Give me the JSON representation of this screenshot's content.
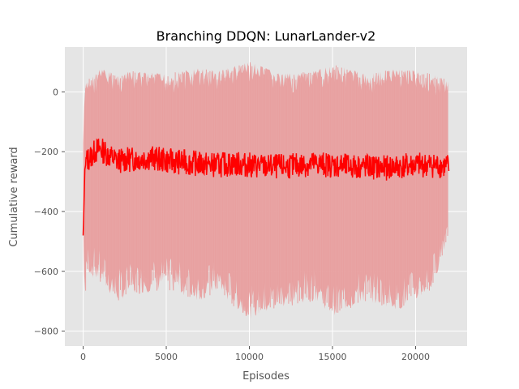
{
  "chart_data": {
    "type": "line",
    "title": "Branching DDQN: LunarLander-v2",
    "xlabel": "Episodes",
    "ylabel": "Cumulative reward",
    "xlim": [
      -1100,
      23100
    ],
    "ylim": [
      -850,
      150
    ],
    "x_ticks": [
      0,
      5000,
      10000,
      15000,
      20000
    ],
    "y_ticks": [
      -800,
      -600,
      -400,
      -200,
      0
    ],
    "x_tick_labels": [
      "0",
      "5000",
      "10000",
      "15000",
      "20000"
    ],
    "y_tick_labels": [
      "−800",
      "−600",
      "−400",
      "−200",
      "0"
    ],
    "grid": true,
    "legend": "none",
    "colors": {
      "background": "#e5e5e5",
      "grid": "#ffffff",
      "raw_series": "#e8a0a0",
      "smoothed_series": "#ff0000"
    },
    "series": [
      {
        "role": "raw episode reward (band)",
        "x": [
          0,
          100,
          250,
          500,
          1000,
          2000,
          3000,
          5000,
          7000,
          8000,
          10000,
          12000,
          14000,
          15000,
          17000,
          19000,
          20000,
          21000,
          22000
        ],
        "upper": [
          -150,
          20,
          40,
          50,
          80,
          60,
          70,
          60,
          80,
          70,
          100,
          60,
          70,
          95,
          60,
          80,
          70,
          60,
          40
        ],
        "lower": [
          -480,
          -720,
          -600,
          -620,
          -640,
          -700,
          -680,
          -660,
          -700,
          -670,
          -760,
          -720,
          -700,
          -750,
          -700,
          -730,
          -700,
          -660,
          -480
        ]
      },
      {
        "role": "smoothed reward",
        "x": [
          0,
          100,
          200,
          400,
          700,
          1000,
          1500,
          2000,
          3000,
          4000,
          5000,
          6000,
          7000,
          8000,
          9000,
          10000,
          11000,
          12000,
          13000,
          14000,
          15000,
          16000,
          17000,
          18000,
          19000,
          20000,
          21000,
          22000
        ],
        "y": [
          -480,
          -260,
          -230,
          -220,
          -200,
          -190,
          -210,
          -230,
          -225,
          -220,
          -230,
          -235,
          -240,
          -245,
          -240,
          -245,
          -250,
          -250,
          -245,
          -240,
          -245,
          -250,
          -250,
          -255,
          -250,
          -245,
          -245,
          -250
        ]
      }
    ]
  }
}
